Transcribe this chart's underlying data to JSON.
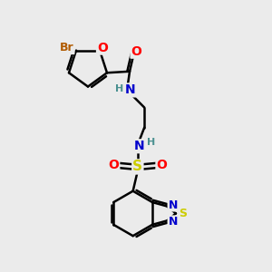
{
  "bg_color": "#ebebeb",
  "bond_color": "#000000",
  "bond_width": 1.8,
  "atom_colors": {
    "Br": "#b05a00",
    "O": "#ff0000",
    "N": "#0000cc",
    "H": "#4a9090",
    "S_sulfonyl": "#cccc00",
    "S_benzo": "#cccc00",
    "N_benzo": "#0000cc"
  },
  "font_size": 10,
  "fig_width": 3.0,
  "fig_height": 3.0,
  "dpi": 100
}
